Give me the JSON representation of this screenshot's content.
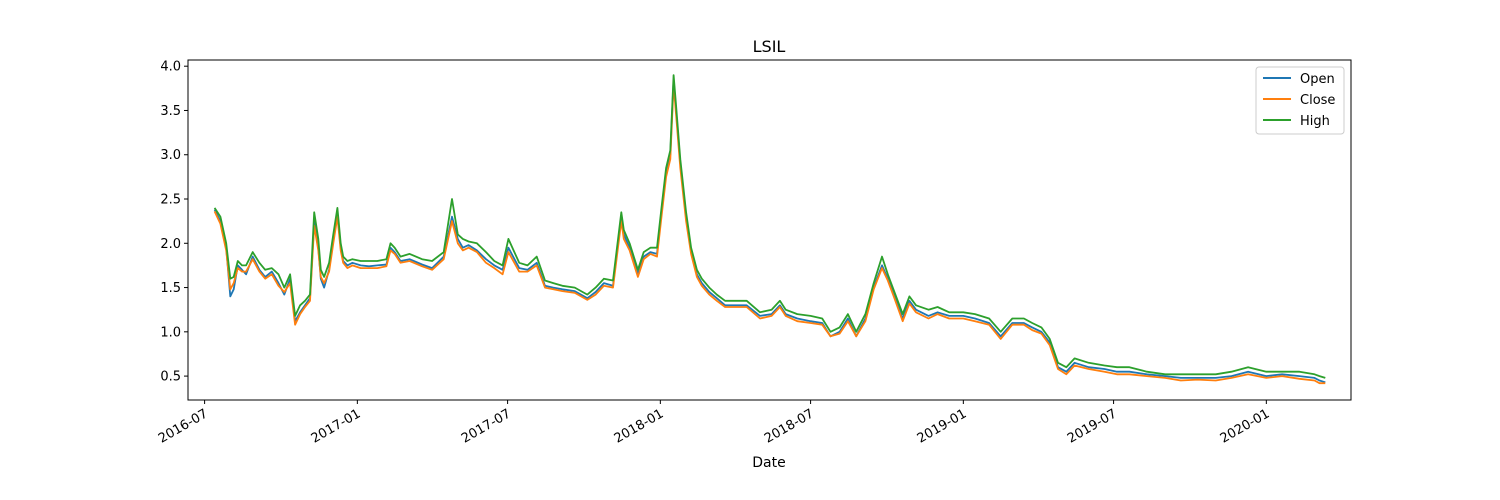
{
  "chart_data": {
    "type": "line",
    "title": "LSIL",
    "xlabel": "Date",
    "ylabel": "",
    "xlim": [
      "2016-06-11",
      "2020-04-12"
    ],
    "ylim": [
      0.23,
      4.07
    ],
    "x_ticks": [
      "2016-07",
      "2017-01",
      "2017-07",
      "2018-01",
      "2018-07",
      "2019-01",
      "2019-07",
      "2020-01"
    ],
    "y_ticks": [
      "0.5",
      "1.0",
      "1.5",
      "2.0",
      "2.5",
      "3.0",
      "3.5",
      "4.0"
    ],
    "grid": false,
    "legend": {
      "position": "top-right"
    },
    "x": [
      "2016-07-13",
      "2016-07-20",
      "2016-07-27",
      "2016-08-01",
      "2016-08-05",
      "2016-08-10",
      "2016-08-15",
      "2016-08-20",
      "2016-08-28",
      "2016-09-05",
      "2016-09-12",
      "2016-09-20",
      "2016-09-28",
      "2016-10-05",
      "2016-10-12",
      "2016-10-18",
      "2016-10-24",
      "2016-10-30",
      "2016-11-05",
      "2016-11-10",
      "2016-11-15",
      "2016-11-18",
      "2016-11-22",
      "2016-11-28",
      "2016-12-03",
      "2016-12-08",
      "2016-12-12",
      "2016-12-15",
      "2016-12-20",
      "2016-12-26",
      "2017-01-05",
      "2017-01-15",
      "2017-01-25",
      "2017-02-05",
      "2017-02-10",
      "2017-02-15",
      "2017-02-22",
      "2017-03-05",
      "2017-03-20",
      "2017-04-01",
      "2017-04-15",
      "2017-04-25",
      "2017-05-02",
      "2017-05-08",
      "2017-05-15",
      "2017-05-25",
      "2017-06-05",
      "2017-06-15",
      "2017-06-25",
      "2017-07-02",
      "2017-07-15",
      "2017-07-25",
      "2017-08-05",
      "2017-08-15",
      "2017-08-25",
      "2017-09-05",
      "2017-09-20",
      "2017-10-05",
      "2017-10-15",
      "2017-10-25",
      "2017-11-05",
      "2017-11-15",
      "2017-11-18",
      "2017-11-25",
      "2017-12-05",
      "2017-12-12",
      "2017-12-20",
      "2017-12-28",
      "2018-01-03",
      "2018-01-08",
      "2018-01-13",
      "2018-01-17",
      "2018-01-20",
      "2018-01-25",
      "2018-02-01",
      "2018-02-07",
      "2018-02-14",
      "2018-02-20",
      "2018-03-01",
      "2018-03-10",
      "2018-03-20",
      "2018-04-01",
      "2018-04-15",
      "2018-05-01",
      "2018-05-15",
      "2018-05-25",
      "2018-06-01",
      "2018-06-15",
      "2018-07-01",
      "2018-07-15",
      "2018-07-25",
      "2018-08-05",
      "2018-08-15",
      "2018-08-25",
      "2018-09-05",
      "2018-09-15",
      "2018-09-25",
      "2018-10-02",
      "2018-10-10",
      "2018-10-20",
      "2018-10-28",
      "2018-11-05",
      "2018-11-20",
      "2018-12-01",
      "2018-12-15",
      "2019-01-01",
      "2019-01-15",
      "2019-02-01",
      "2019-02-15",
      "2019-03-01",
      "2019-03-15",
      "2019-03-25",
      "2019-04-05",
      "2019-04-15",
      "2019-04-25",
      "2019-05-05",
      "2019-05-15",
      "2019-06-01",
      "2019-06-20",
      "2019-07-05",
      "2019-07-20",
      "2019-08-10",
      "2019-09-01",
      "2019-09-20",
      "2019-10-10",
      "2019-11-01",
      "2019-11-20",
      "2019-12-10",
      "2020-01-01",
      "2020-01-20",
      "2020-02-10",
      "2020-02-28",
      "2020-03-05",
      "2020-03-12"
    ],
    "series": [
      {
        "name": "Open",
        "color": "#1f77b4",
        "values": [
          2.38,
          2.25,
          1.95,
          1.4,
          1.48,
          1.75,
          1.7,
          1.65,
          1.85,
          1.7,
          1.62,
          1.68,
          1.55,
          1.42,
          1.6,
          1.12,
          1.22,
          1.3,
          1.38,
          2.25,
          1.95,
          1.6,
          1.5,
          1.7,
          2.05,
          2.35,
          1.95,
          1.8,
          1.75,
          1.78,
          1.75,
          1.74,
          1.75,
          1.76,
          1.95,
          1.9,
          1.8,
          1.82,
          1.76,
          1.72,
          1.85,
          2.3,
          2.05,
          1.95,
          1.98,
          1.92,
          1.82,
          1.75,
          1.7,
          1.95,
          1.72,
          1.7,
          1.78,
          1.52,
          1.5,
          1.48,
          1.46,
          1.38,
          1.45,
          1.55,
          1.52,
          2.3,
          2.1,
          1.95,
          1.65,
          1.85,
          1.9,
          1.88,
          2.4,
          2.8,
          3.0,
          3.85,
          3.5,
          2.9,
          2.3,
          1.9,
          1.65,
          1.55,
          1.45,
          1.38,
          1.3,
          1.3,
          1.3,
          1.18,
          1.2,
          1.3,
          1.2,
          1.15,
          1.12,
          1.1,
          0.95,
          1.0,
          1.15,
          0.95,
          1.15,
          1.5,
          1.75,
          1.6,
          1.4,
          1.15,
          1.35,
          1.25,
          1.18,
          1.22,
          1.18,
          1.18,
          1.15,
          1.1,
          0.95,
          1.1,
          1.1,
          1.05,
          1.0,
          0.88,
          0.6,
          0.55,
          0.65,
          0.6,
          0.58,
          0.55,
          0.55,
          0.52,
          0.5,
          0.48,
          0.48,
          0.48,
          0.5,
          0.55,
          0.5,
          0.52,
          0.5,
          0.48,
          0.45,
          0.43
        ]
      },
      {
        "name": "Close",
        "color": "#ff7f0e",
        "values": [
          2.36,
          2.22,
          1.92,
          1.48,
          1.55,
          1.72,
          1.68,
          1.68,
          1.82,
          1.68,
          1.6,
          1.65,
          1.52,
          1.45,
          1.55,
          1.08,
          1.2,
          1.28,
          1.35,
          2.2,
          1.92,
          1.62,
          1.55,
          1.68,
          2.0,
          2.3,
          1.92,
          1.78,
          1.72,
          1.75,
          1.72,
          1.72,
          1.72,
          1.74,
          1.92,
          1.88,
          1.78,
          1.8,
          1.74,
          1.7,
          1.82,
          2.25,
          2.0,
          1.92,
          1.95,
          1.9,
          1.78,
          1.72,
          1.65,
          1.9,
          1.68,
          1.68,
          1.75,
          1.5,
          1.48,
          1.46,
          1.44,
          1.36,
          1.42,
          1.52,
          1.5,
          2.25,
          2.05,
          1.92,
          1.62,
          1.82,
          1.88,
          1.85,
          2.35,
          2.75,
          2.95,
          3.8,
          3.45,
          2.85,
          2.25,
          1.88,
          1.62,
          1.52,
          1.42,
          1.35,
          1.28,
          1.28,
          1.28,
          1.15,
          1.18,
          1.28,
          1.18,
          1.12,
          1.1,
          1.08,
          0.95,
          0.98,
          1.12,
          0.95,
          1.12,
          1.48,
          1.72,
          1.58,
          1.38,
          1.12,
          1.32,
          1.22,
          1.15,
          1.2,
          1.15,
          1.15,
          1.12,
          1.08,
          0.92,
          1.08,
          1.08,
          1.02,
          0.98,
          0.85,
          0.58,
          0.52,
          0.62,
          0.58,
          0.55,
          0.52,
          0.52,
          0.5,
          0.48,
          0.45,
          0.46,
          0.45,
          0.48,
          0.52,
          0.48,
          0.5,
          0.47,
          0.45,
          0.42,
          0.42
        ]
      },
      {
        "name": "High",
        "color": "#2ca02c",
        "values": [
          2.4,
          2.3,
          2.0,
          1.6,
          1.62,
          1.8,
          1.75,
          1.75,
          1.9,
          1.78,
          1.7,
          1.72,
          1.65,
          1.5,
          1.65,
          1.18,
          1.3,
          1.35,
          1.42,
          2.35,
          2.05,
          1.7,
          1.62,
          1.78,
          2.1,
          2.4,
          2.0,
          1.85,
          1.8,
          1.82,
          1.8,
          1.8,
          1.8,
          1.82,
          2.0,
          1.95,
          1.85,
          1.88,
          1.82,
          1.8,
          1.9,
          2.5,
          2.1,
          2.05,
          2.02,
          2.0,
          1.9,
          1.8,
          1.75,
          2.05,
          1.78,
          1.75,
          1.85,
          1.58,
          1.55,
          1.52,
          1.5,
          1.42,
          1.5,
          1.6,
          1.58,
          2.35,
          2.15,
          2.0,
          1.7,
          1.9,
          1.95,
          1.95,
          2.45,
          2.85,
          3.05,
          3.9,
          3.55,
          2.95,
          2.35,
          1.95,
          1.7,
          1.6,
          1.5,
          1.42,
          1.35,
          1.35,
          1.35,
          1.22,
          1.25,
          1.35,
          1.25,
          1.2,
          1.18,
          1.15,
          1.0,
          1.05,
          1.2,
          1.0,
          1.2,
          1.55,
          1.85,
          1.65,
          1.45,
          1.2,
          1.4,
          1.3,
          1.25,
          1.28,
          1.22,
          1.22,
          1.2,
          1.15,
          1.0,
          1.15,
          1.15,
          1.1,
          1.05,
          0.92,
          0.65,
          0.6,
          0.7,
          0.65,
          0.62,
          0.6,
          0.6,
          0.55,
          0.52,
          0.52,
          0.52,
          0.52,
          0.55,
          0.6,
          0.55,
          0.55,
          0.55,
          0.52,
          0.5,
          0.48
        ]
      }
    ]
  }
}
